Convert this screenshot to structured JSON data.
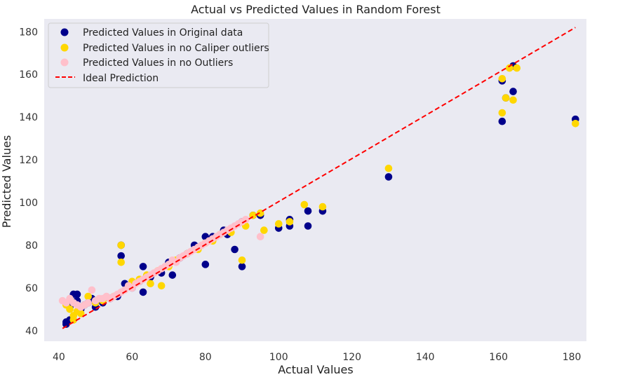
{
  "chart_data": {
    "type": "scatter",
    "title": "Actual vs Predicted Values in Random Forest",
    "xlabel": "Actual Values",
    "ylabel": "Predicted Values",
    "xlim": [
      36,
      184
    ],
    "ylim": [
      35,
      186
    ],
    "xticks": [
      40,
      60,
      80,
      100,
      120,
      140,
      160,
      180
    ],
    "yticks": [
      40,
      60,
      80,
      100,
      120,
      140,
      160,
      180
    ],
    "grid": false,
    "legend_position": "top-left",
    "background": "#eaeaf2",
    "series": [
      {
        "name": "Predicted Values in Original data",
        "color": "#00008b",
        "marker": "dot",
        "points": [
          [
            42,
            44
          ],
          [
            42,
            43
          ],
          [
            43,
            45
          ],
          [
            43,
            51
          ],
          [
            44,
            57
          ],
          [
            44,
            53
          ],
          [
            45,
            57
          ],
          [
            45,
            54
          ],
          [
            46,
            50
          ],
          [
            47,
            52
          ],
          [
            48,
            53
          ],
          [
            49,
            55
          ],
          [
            50,
            51
          ],
          [
            52,
            53
          ],
          [
            54,
            55
          ],
          [
            56,
            56
          ],
          [
            57,
            80
          ],
          [
            57,
            75
          ],
          [
            58,
            62
          ],
          [
            60,
            60
          ],
          [
            62,
            63
          ],
          [
            63,
            70
          ],
          [
            63,
            58
          ],
          [
            65,
            65
          ],
          [
            68,
            67
          ],
          [
            70,
            72
          ],
          [
            71,
            66
          ],
          [
            73,
            74
          ],
          [
            75,
            76
          ],
          [
            77,
            80
          ],
          [
            78,
            79
          ],
          [
            80,
            84
          ],
          [
            80,
            71
          ],
          [
            82,
            84
          ],
          [
            85,
            87
          ],
          [
            86,
            85
          ],
          [
            88,
            78
          ],
          [
            90,
            70
          ],
          [
            90,
            91
          ],
          [
            93,
            94
          ],
          [
            95,
            94
          ],
          [
            100,
            88
          ],
          [
            103,
            92
          ],
          [
            103,
            89
          ],
          [
            108,
            96
          ],
          [
            108,
            89
          ],
          [
            112,
            96
          ],
          [
            130,
            112
          ],
          [
            161,
            157
          ],
          [
            161,
            138
          ],
          [
            162,
            149
          ],
          [
            164,
            152
          ],
          [
            164,
            164
          ],
          [
            181,
            139
          ]
        ]
      },
      {
        "name": "Predicted Values in no Caliper outliers",
        "color": "#ffd700",
        "marker": "dot",
        "points": [
          [
            42,
            52
          ],
          [
            43,
            50
          ],
          [
            44,
            47
          ],
          [
            44,
            45
          ],
          [
            45,
            49
          ],
          [
            46,
            48
          ],
          [
            48,
            56
          ],
          [
            50,
            53
          ],
          [
            52,
            54
          ],
          [
            55,
            56
          ],
          [
            57,
            72
          ],
          [
            57,
            80
          ],
          [
            60,
            63
          ],
          [
            62,
            64
          ],
          [
            64,
            66
          ],
          [
            65,
            62
          ],
          [
            67,
            68
          ],
          [
            68,
            61
          ],
          [
            70,
            70
          ],
          [
            72,
            73
          ],
          [
            75,
            76
          ],
          [
            78,
            78
          ],
          [
            80,
            81
          ],
          [
            82,
            82
          ],
          [
            84,
            85
          ],
          [
            87,
            86
          ],
          [
            90,
            73
          ],
          [
            91,
            89
          ],
          [
            93,
            94
          ],
          [
            95,
            95
          ],
          [
            96,
            87
          ],
          [
            100,
            90
          ],
          [
            103,
            91
          ],
          [
            107,
            99
          ],
          [
            112,
            98
          ],
          [
            130,
            116
          ],
          [
            161,
            142
          ],
          [
            161,
            158
          ],
          [
            162,
            149
          ],
          [
            163,
            163
          ],
          [
            164,
            148
          ],
          [
            165,
            163
          ],
          [
            181,
            137
          ]
        ]
      },
      {
        "name": "Predicted Values in no Outliers",
        "color": "#ffc0cb",
        "marker": "dot",
        "points": [
          [
            41,
            54
          ],
          [
            42,
            53
          ],
          [
            43,
            55
          ],
          [
            44,
            53
          ],
          [
            45,
            52
          ],
          [
            46,
            51
          ],
          [
            47,
            52
          ],
          [
            48,
            53
          ],
          [
            49,
            59
          ],
          [
            50,
            54
          ],
          [
            51,
            55
          ],
          [
            52,
            55
          ],
          [
            53,
            56
          ],
          [
            54,
            55
          ],
          [
            55,
            56
          ],
          [
            56,
            57
          ],
          [
            57,
            58
          ],
          [
            58,
            59
          ],
          [
            59,
            61
          ],
          [
            60,
            60
          ],
          [
            61,
            62
          ],
          [
            62,
            63
          ],
          [
            63,
            64
          ],
          [
            64,
            65
          ],
          [
            65,
            66
          ],
          [
            66,
            67
          ],
          [
            67,
            68
          ],
          [
            68,
            69
          ],
          [
            69,
            70
          ],
          [
            70,
            71
          ],
          [
            71,
            73
          ],
          [
            72,
            72
          ],
          [
            73,
            74
          ],
          [
            74,
            75
          ],
          [
            75,
            76
          ],
          [
            76,
            77
          ],
          [
            77,
            78
          ],
          [
            78,
            79
          ],
          [
            79,
            80
          ],
          [
            80,
            81
          ],
          [
            81,
            82
          ],
          [
            82,
            83
          ],
          [
            83,
            84
          ],
          [
            84,
            85
          ],
          [
            85,
            86
          ],
          [
            86,
            87
          ],
          [
            87,
            88
          ],
          [
            88,
            89
          ],
          [
            89,
            90
          ],
          [
            90,
            91
          ],
          [
            91,
            92
          ],
          [
            95,
            84
          ]
        ]
      }
    ],
    "reference_line": {
      "name": "Ideal Prediction",
      "color": "#ff0000",
      "style": "dashed",
      "from": [
        41,
        41
      ],
      "to": [
        181,
        182
      ]
    }
  }
}
